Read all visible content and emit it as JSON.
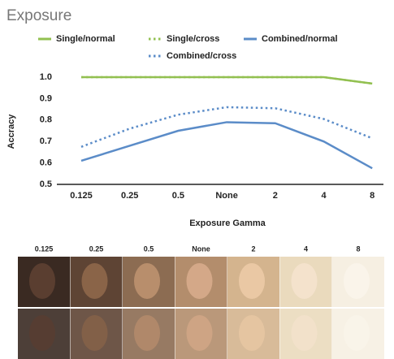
{
  "chart_data": {
    "type": "line",
    "title": "Exposure",
    "categories": [
      "0.125",
      "0.25",
      "0.5",
      "None",
      "2",
      "4",
      "8"
    ],
    "series": [
      {
        "name": "Single/normal",
        "color": "#92c050",
        "style": "solid",
        "values": [
          1.0,
          1.0,
          1.0,
          1.0,
          1.0,
          1.0,
          0.97
        ]
      },
      {
        "name": "Single/cross",
        "color": "#92c050",
        "style": "dotted",
        "values": [
          1.0,
          1.0,
          1.0,
          1.0,
          1.0,
          1.0,
          0.97
        ]
      },
      {
        "name": "Combined/normal",
        "color": "#5b8cc8",
        "style": "solid",
        "values": [
          0.61,
          0.68,
          0.75,
          0.79,
          0.785,
          0.7,
          0.575
        ]
      },
      {
        "name": "Combined/cross",
        "color": "#5b8cc8",
        "style": "dotted",
        "values": [
          0.675,
          0.76,
          0.825,
          0.86,
          0.855,
          0.805,
          0.715
        ]
      }
    ],
    "ylim": [
      0.5,
      1.0
    ],
    "yticks": [
      {
        "value": 1,
        "label": "1.0"
      },
      0.9,
      0.8,
      0.7,
      0.6,
      0.5
    ],
    "y_label": "Accracy",
    "x_label": "Exposure Gamma",
    "grid": false
  },
  "image_grid": {
    "column_labels": [
      "0.125",
      "0.25",
      "0.5",
      "None",
      "2",
      "4",
      "8"
    ]
  }
}
